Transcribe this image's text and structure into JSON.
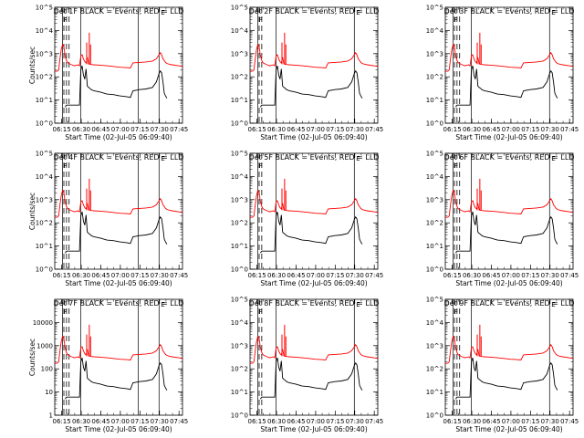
{
  "chart_data": [
    {
      "type": "line",
      "title": "Det 1F BLACK = Events, RED = LLD",
      "ylabel": "Counts/sec",
      "xlabel": "Start Time (02-Jul-05 06:09:40)",
      "ytick_style": "exp",
      "markers": {
        "flare": "F",
        "eclipse": "E",
        "dashed": 3,
        "solid_extra": true
      }
    },
    {
      "type": "line",
      "title": "Det 2F BLACK = Events, RED = LLD",
      "ylabel": "",
      "xlabel": "Start Time (02-Jul-05 06:09:40)",
      "ytick_style": "exp",
      "markers": {
        "flare": "F",
        "eclipse": "E",
        "dashed": 2,
        "solid_extra": false
      }
    },
    {
      "type": "line",
      "title": "Det 3F BLACK = Events, RED = LLD",
      "ylabel": "",
      "xlabel": "Start Time (02-Jul-05 06:09:40)",
      "ytick_style": "exp",
      "markers": {
        "flare": "F",
        "eclipse": "E",
        "dashed": 3,
        "solid_extra": false
      }
    },
    {
      "type": "line",
      "title": "Det 4F BLACK = Events, RED = LLD",
      "ylabel": "Counts/sec",
      "xlabel": "Start Time (02-Jul-05 06:09:40)",
      "ytick_style": "exp",
      "markers": {
        "flare": "F",
        "eclipse": "E",
        "dashed": 3,
        "solid_extra": true
      }
    },
    {
      "type": "line",
      "title": "Det 5F BLACK = Events, RED = LLD",
      "ylabel": "",
      "xlabel": "Start Time (02-Jul-05 06:09:40)",
      "ytick_style": "exp",
      "markers": {
        "flare": "F",
        "eclipse": "E",
        "dashed": 2,
        "solid_extra": false
      }
    },
    {
      "type": "line",
      "title": "Det 6F BLACK = Events, RED = LLD",
      "ylabel": "",
      "xlabel": "Start Time (02-Jul-05 06:09:40)",
      "ytick_style": "exp",
      "markers": {
        "flare": "F",
        "eclipse": "E",
        "dashed": 3,
        "solid_extra": false
      }
    },
    {
      "type": "line",
      "title": "Det 7F BLACK = Events, RED = LLD",
      "ylabel": "Counts/sec",
      "xlabel": "Start Time (02-Jul-05 06:09:40)",
      "ytick_style": "plain",
      "markers": {
        "flare": "F",
        "eclipse": "E",
        "dashed": 3,
        "solid_extra": true
      }
    },
    {
      "type": "line",
      "title": "Det 8F BLACK = Events, RED = LLD",
      "ylabel": "",
      "xlabel": "Start Time (02-Jul-05 06:09:40)",
      "ytick_style": "exp",
      "markers": {
        "flare": "F",
        "eclipse": "E",
        "dashed": 2,
        "solid_extra": false
      }
    },
    {
      "type": "line",
      "title": "Det 9F BLACK = Events, RED = LLD",
      "ylabel": "",
      "xlabel": "Start Time (02-Jul-05 06:09:40)",
      "ytick_style": "exp",
      "markers": {
        "flare": "F",
        "eclipse": "E",
        "dashed": 3,
        "solid_extra": false
      }
    }
  ],
  "shared": {
    "yscale": "log",
    "ylim": [
      1,
      100000
    ],
    "xlim_minutes": [
      0,
      98
    ],
    "x_tick_labels": [
      "06:15",
      "06:30",
      "06:45",
      "07:00",
      "07:15",
      "07:30",
      "07:45"
    ],
    "x_tick_minutes": [
      5.33,
      20.33,
      35.33,
      50.33,
      65.33,
      80.33,
      95.33
    ],
    "y_ticks_exp": [
      "10^0",
      "10^1",
      "10^2",
      "10^3",
      "10^4",
      "10^5"
    ],
    "y_ticks_plain": [
      "1",
      "10",
      "100",
      "1000",
      "10000"
    ],
    "colors": {
      "events": "#000000",
      "lld": "#ff0000"
    },
    "series": [
      {
        "name": "BLACK = Events",
        "x": [
          0,
          2,
          4,
          5,
          6,
          7,
          8,
          9,
          10,
          11,
          12,
          13,
          14,
          15,
          16,
          17,
          18,
          19,
          20,
          21,
          22,
          23,
          24,
          25,
          26,
          27,
          28,
          30,
          35,
          40,
          45,
          50,
          55,
          58,
          60,
          65,
          70,
          75,
          78,
          80,
          81,
          82,
          83,
          84,
          85,
          86,
          87,
          88
        ],
        "y": [
          0,
          0,
          0,
          0,
          0,
          0,
          5,
          6,
          6,
          6,
          6,
          6,
          6,
          6,
          6,
          6,
          6,
          6,
          200,
          300,
          120,
          80,
          220,
          40,
          35,
          32,
          28,
          25,
          22,
          18,
          17,
          15,
          14,
          13,
          25,
          28,
          30,
          35,
          60,
          140,
          180,
          150,
          60,
          20,
          15,
          12,
          0,
          0
        ]
      },
      {
        "name": "RED = LLD",
        "x": [
          0,
          2,
          3,
          4,
          5,
          6,
          7,
          8,
          9,
          10,
          11,
          12,
          13,
          14,
          15,
          16,
          17,
          18,
          19,
          20,
          21,
          22,
          23,
          24,
          25,
          26,
          27,
          28,
          30,
          35,
          40,
          45,
          50,
          55,
          58,
          60,
          65,
          70,
          75,
          78,
          80,
          81,
          82,
          83,
          84,
          85,
          86,
          88,
          90,
          95,
          98
        ],
        "y": [
          170,
          175,
          200,
          600,
          1500,
          2500,
          2000,
          800,
          500,
          400,
          380,
          350,
          330,
          320,
          300,
          310,
          320,
          330,
          300,
          800,
          900,
          600,
          450,
          400,
          700,
          360,
          350,
          340,
          330,
          320,
          300,
          280,
          260,
          250,
          240,
          400,
          420,
          440,
          480,
          600,
          900,
          1100,
          900,
          600,
          500,
          420,
          380,
          350,
          330,
          300,
          280
        ]
      }
    ],
    "spikes": [
      {
        "x": 24.5,
        "y": 3000
      },
      {
        "x": 26.5,
        "y": 8000
      },
      {
        "x": 27.5,
        "y": 2500
      }
    ],
    "flare_marker_x": 6,
    "eclipse_marker_x": 80,
    "dashed_x": [
      7,
      9,
      11
    ],
    "solid_extra_x": 64
  }
}
